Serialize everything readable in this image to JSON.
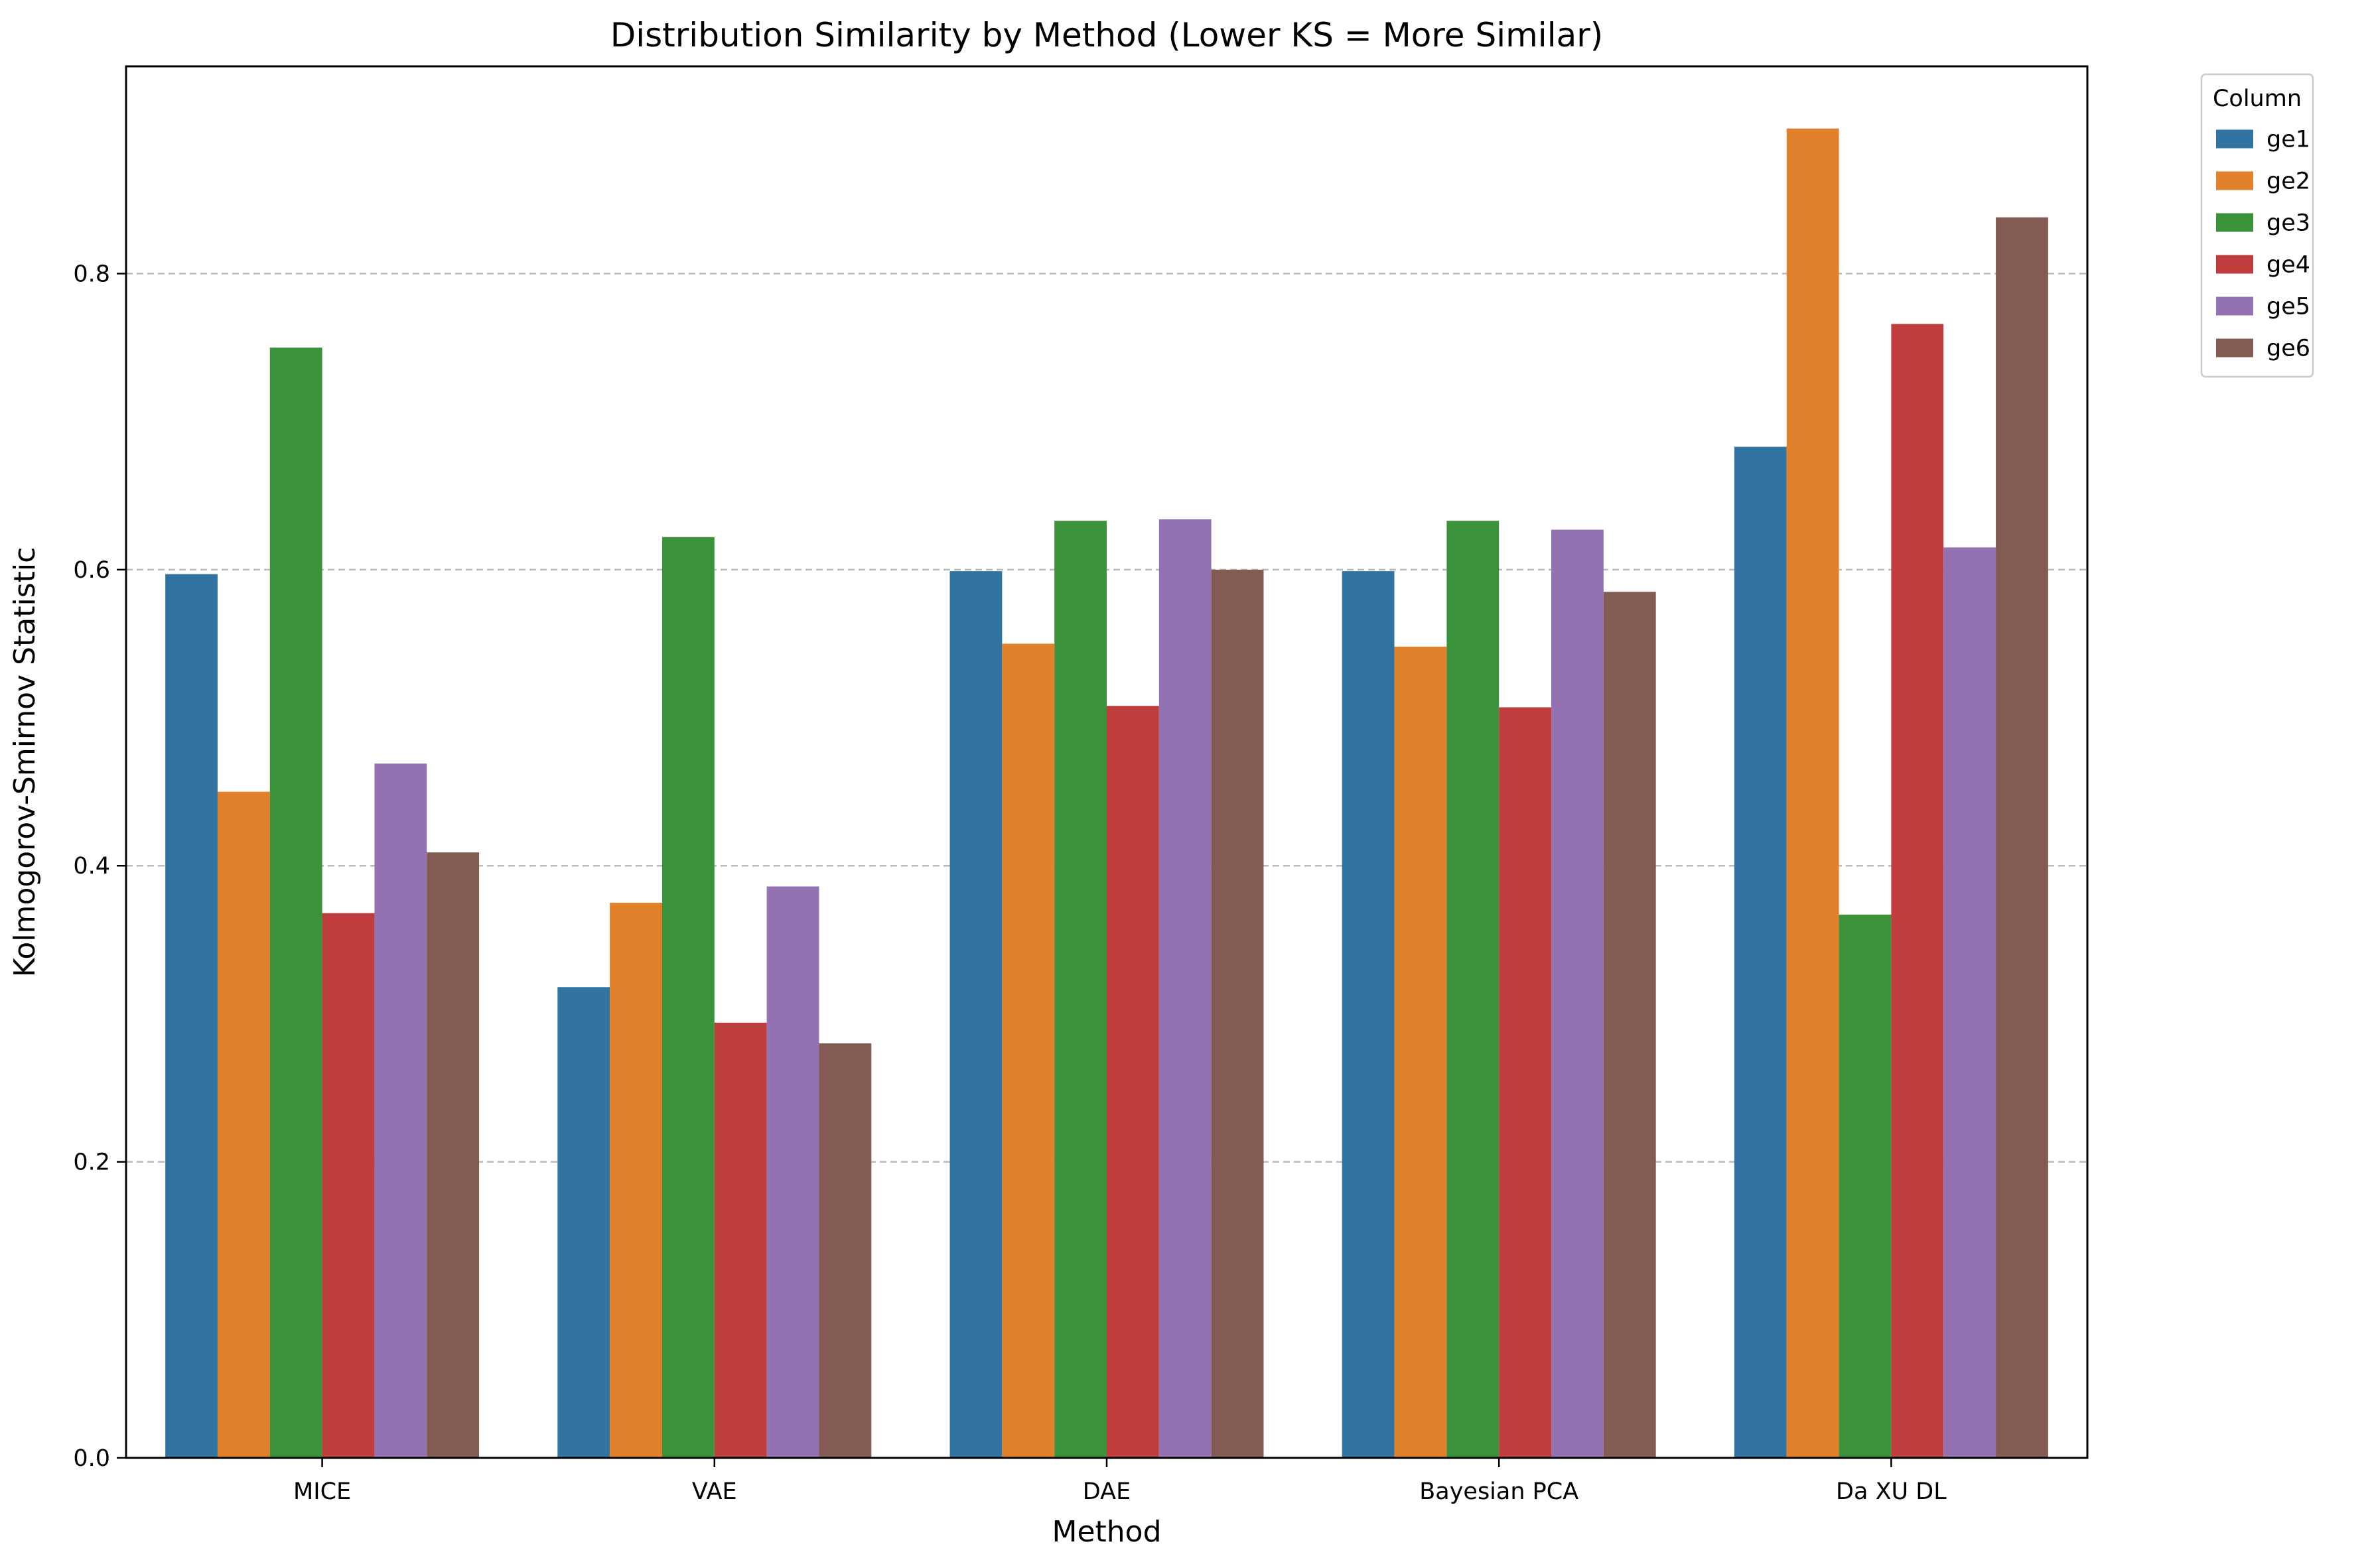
{
  "chart_data": {
    "type": "bar",
    "title": "Distribution Similarity by Method (Lower KS = More Similar)",
    "xlabel": "Method",
    "ylabel": "Kolmogorov-Smirnov Statistic",
    "categories": [
      "MICE",
      "VAE",
      "DAE",
      "Bayesian PCA",
      "Da XU DL"
    ],
    "series": [
      {
        "name": "ge1",
        "color": "#3274a1",
        "values": [
          0.597,
          0.318,
          0.599,
          0.599,
          0.683
        ]
      },
      {
        "name": "ge2",
        "color": "#e1812c",
        "values": [
          0.45,
          0.375,
          0.55,
          0.548,
          0.898
        ]
      },
      {
        "name": "ge3",
        "color": "#3a923a",
        "values": [
          0.75,
          0.622,
          0.633,
          0.633,
          0.367
        ]
      },
      {
        "name": "ge4",
        "color": "#c03d3e",
        "values": [
          0.368,
          0.294,
          0.508,
          0.507,
          0.766
        ]
      },
      {
        "name": "ge5",
        "color": "#9372b2",
        "values": [
          0.469,
          0.386,
          0.634,
          0.627,
          0.615
        ]
      },
      {
        "name": "ge6",
        "color": "#845b53",
        "values": [
          0.409,
          0.28,
          0.6,
          0.585,
          0.838
        ]
      }
    ],
    "ylim": [
      0,
      0.94
    ],
    "yticks": [
      0.0,
      0.2,
      0.4,
      0.6,
      0.8
    ],
    "ytick_labels": [
      "0.0",
      "0.2",
      "0.4",
      "0.6",
      "0.8"
    ],
    "grid": "y-axis, dashed",
    "legend": {
      "title": "Column",
      "placement": "outside-top-right"
    }
  }
}
